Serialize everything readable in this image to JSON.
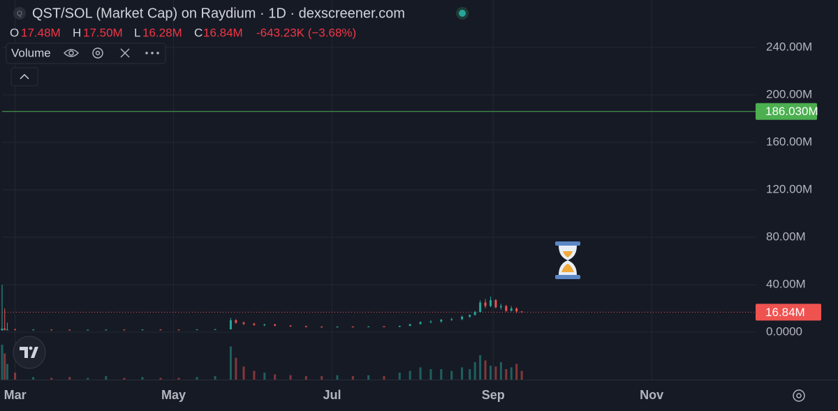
{
  "chart_data": {
    "type": "candlestick",
    "symbol_icon": "Q",
    "title": "QST/SOL (Market Cap) on Raydium · 1D · dexscreener.com",
    "ohlc_labels": [
      {
        "name": "O",
        "value": "17.48M"
      },
      {
        "name": "H",
        "value": "17.50M"
      },
      {
        "name": "L",
        "value": "16.28M"
      },
      {
        "name": "C",
        "value": "16.84M"
      }
    ],
    "change": "-643.23K (−3.68%)",
    "legend": "Volume",
    "x": [
      -5,
      -4,
      -3,
      0,
      7,
      14,
      21,
      28,
      35,
      42,
      49,
      56,
      63,
      70,
      77,
      83,
      85,
      88,
      92,
      96,
      100,
      106,
      112,
      118,
      124,
      130,
      136,
      142,
      148,
      152,
      156,
      160,
      164,
      168,
      172,
      175,
      177,
      179,
      181,
      183,
      185,
      187,
      189,
      191,
      193,
      195
    ],
    "open": [
      1.5,
      3,
      2,
      2.2,
      2,
      2.1,
      2,
      1.9,
      2,
      2.1,
      2,
      2.2,
      2.1,
      2,
      2.3,
      2.4,
      10,
      8,
      7,
      6,
      6.5,
      5.5,
      5,
      4.5,
      4.3,
      4.6,
      4.4,
      4.8,
      4.5,
      5.3,
      6.8,
      8.5,
      9,
      10.5,
      11,
      13,
      14.5,
      17,
      25,
      22,
      27,
      21,
      22,
      18,
      20,
      17.48
    ],
    "high": [
      40,
      20,
      8,
      3,
      2.5,
      2.4,
      2.3,
      2.2,
      2.3,
      2.3,
      2.4,
      2.4,
      2.3,
      2.4,
      2.6,
      12,
      11,
      9,
      8,
      7,
      7,
      6,
      5.5,
      5,
      5,
      5,
      5,
      5.2,
      5.5,
      7,
      9,
      10,
      11,
      12,
      14,
      15,
      18,
      27,
      28,
      30,
      28,
      24,
      23,
      22,
      21,
      17.5
    ],
    "low": [
      1.2,
      1.5,
      1.5,
      1.8,
      1.8,
      1.9,
      1.8,
      1.7,
      1.9,
      1.9,
      1.9,
      2,
      1.9,
      1.9,
      2,
      2.3,
      7,
      6,
      5.5,
      5,
      5,
      4.5,
      4,
      4,
      4,
      4.2,
      4.1,
      4.3,
      4.2,
      5,
      6.5,
      7.5,
      8,
      9.5,
      10,
      12,
      14,
      16.5,
      20,
      21,
      20,
      19,
      17,
      17.5,
      16,
      16.28
    ],
    "close": [
      3,
      2,
      2.2,
      2,
      2.1,
      2,
      1.9,
      2,
      2.1,
      2,
      2.2,
      2.1,
      2,
      2.3,
      2.4,
      10,
      8,
      7,
      6,
      6.5,
      5.5,
      5,
      4.5,
      4.3,
      4.6,
      4.4,
      4.8,
      4.5,
      5.3,
      6.8,
      8.5,
      9,
      10.5,
      11,
      13,
      14.5,
      17,
      25,
      22,
      27,
      21,
      22,
      18,
      20,
      17.48,
      16.84
    ],
    "volume": [
      40,
      30,
      18,
      8,
      3,
      2,
      3,
      2,
      4,
      2,
      3,
      2,
      2,
      3,
      4,
      38,
      25,
      15,
      10,
      8,
      6,
      5,
      4,
      4,
      5,
      4,
      5,
      4,
      8,
      10,
      14,
      12,
      12,
      10,
      14,
      12,
      20,
      28,
      22,
      16,
      15,
      20,
      12,
      14,
      18,
      10
    ],
    "xlim": [
      -5,
      285
    ],
    "xticks": [
      {
        "value": 0,
        "label": "Mar"
      },
      {
        "value": 61,
        "label": "May"
      },
      {
        "value": 122,
        "label": "Jul"
      },
      {
        "value": 184,
        "label": "Sep"
      },
      {
        "value": 245,
        "label": "Nov"
      }
    ],
    "ylim": [
      -40,
      280
    ],
    "yticks": [
      {
        "value": 0,
        "label": "0.0000"
      },
      {
        "value": 40,
        "label": "40.00M"
      },
      {
        "value": 80,
        "label": "80.00M"
      },
      {
        "value": 120,
        "label": "120.00M"
      },
      {
        "value": 160,
        "label": "160.00M"
      },
      {
        "value": 200,
        "label": "200.00M"
      },
      {
        "value": 240,
        "label": "240.00M"
      }
    ],
    "grid": true,
    "up_color": "#26a69a",
    "down_color": "#ef5350",
    "price_line": {
      "value": 186.03,
      "label": "186.030M",
      "color": "#4caf50"
    },
    "last_price": {
      "value": 16.84,
      "label": "16.84M",
      "color": "#ef5350"
    }
  }
}
